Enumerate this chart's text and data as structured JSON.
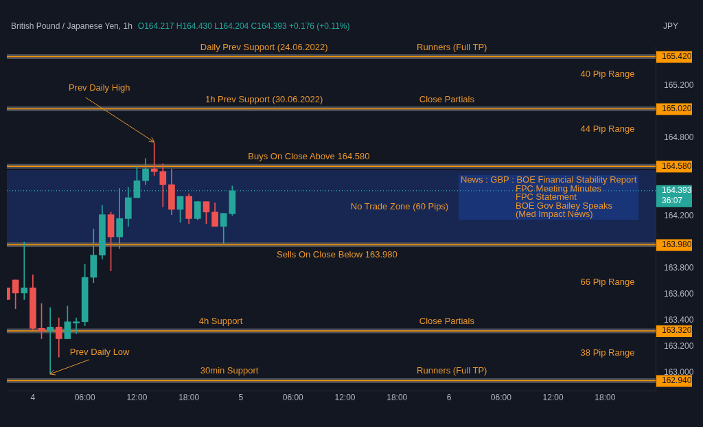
{
  "chart_data": {
    "type": "candlestick",
    "title": "British Pound / Japanese Yen, 1h",
    "subtitle": "O164.217  H164.430  L164.204  C164.393  +0.176 (+0.11%)",
    "ylabel": "JPY",
    "x": [
      "2022-07-03T21:00",
      "2022-07-03T22:00",
      "2022-07-03T23:00",
      "2022-07-04T00:00",
      "2022-07-04T01:00",
      "2022-07-04T02:00",
      "2022-07-04T03:00",
      "2022-07-04T04:00",
      "2022-07-04T05:00",
      "2022-07-04T06:00",
      "2022-07-04T07:00",
      "2022-07-04T08:00",
      "2022-07-04T09:00",
      "2022-07-04T10:00",
      "2022-07-04T11:00",
      "2022-07-04T12:00",
      "2022-07-04T13:00",
      "2022-07-04T14:00",
      "2022-07-04T15:00",
      "2022-07-04T16:00",
      "2022-07-04T17:00",
      "2022-07-04T18:00",
      "2022-07-04T19:00",
      "2022-07-04T20:00",
      "2022-07-04T21:00",
      "2022-07-04T22:00",
      "2022-07-04T23:00"
    ],
    "ohlc": [
      [
        163.65,
        163.65,
        163.56,
        163.56
      ],
      [
        163.71,
        163.71,
        163.49,
        163.61
      ],
      [
        163.61,
        164.0,
        163.56,
        163.65
      ],
      [
        163.65,
        163.75,
        163.33,
        163.34
      ],
      [
        163.34,
        163.53,
        163.26,
        163.32
      ],
      [
        163.32,
        163.5,
        162.99,
        163.35
      ],
      [
        163.35,
        163.42,
        163.12,
        163.26
      ],
      [
        163.26,
        163.51,
        163.26,
        163.39
      ],
      [
        163.38,
        163.42,
        163.3,
        163.39
      ],
      [
        163.39,
        163.83,
        163.36,
        163.73
      ],
      [
        163.73,
        164.1,
        163.69,
        163.9
      ],
      [
        163.9,
        164.28,
        163.87,
        164.21
      ],
      [
        164.21,
        164.23,
        163.78,
        164.04
      ],
      [
        164.04,
        164.41,
        163.95,
        164.18
      ],
      [
        164.18,
        164.42,
        164.12,
        164.34
      ],
      [
        164.34,
        164.58,
        164.34,
        164.47
      ],
      [
        164.47,
        164.64,
        164.44,
        164.56
      ],
      [
        164.56,
        164.76,
        164.51,
        164.54
      ],
      [
        164.54,
        164.6,
        164.27,
        164.44
      ],
      [
        164.44,
        164.56,
        164.21,
        164.25
      ],
      [
        164.25,
        164.35,
        164.15,
        164.35
      ],
      [
        164.35,
        164.37,
        164.14,
        164.18
      ],
      [
        164.18,
        164.31,
        164.17,
        164.31
      ],
      [
        164.31,
        164.31,
        164.14,
        164.23
      ],
      [
        164.23,
        164.3,
        164.12,
        164.12
      ],
      [
        164.12,
        164.22,
        163.98,
        164.22
      ],
      [
        164.217,
        164.43,
        164.204,
        164.393
      ]
    ],
    "colors": [
      "#ef5350",
      "#ef5350",
      "#26a69a",
      "#ef5350",
      "#ef5350",
      "#26a69a",
      "#ef5350",
      "#26a69a",
      "#26a69a",
      "#26a69a",
      "#26a69a",
      "#26a69a",
      "#ef5350",
      "#26a69a",
      "#26a69a",
      "#26a69a",
      "#26a69a",
      "#ef5350",
      "#ef5350",
      "#ef5350",
      "#26a69a",
      "#ef5350",
      "#26a69a",
      "#ef5350",
      "#ef5350",
      "#26a69a",
      "#26a69a"
    ],
    "xlim": [
      "2022-07-03T21:00",
      "2022-07-06T23:50"
    ],
    "xticks": [
      {
        "value": "2022-07-04",
        "label": "4"
      },
      {
        "value": "2022-07-04T06:00",
        "label": "06:00"
      },
      {
        "value": "2022-07-04T12:00",
        "label": "12:00"
      },
      {
        "value": "2022-07-04T18:00",
        "label": "18:00"
      },
      {
        "value": "2022-07-05",
        "label": "5"
      },
      {
        "value": "2022-07-05T06:00",
        "label": "06:00"
      },
      {
        "value": "2022-07-05T12:00",
        "label": "12:00"
      },
      {
        "value": "2022-07-05T18:00",
        "label": "18:00"
      },
      {
        "value": "2022-07-06",
        "label": "6"
      },
      {
        "value": "2022-07-06T06:00",
        "label": "06:00"
      },
      {
        "value": "2022-07-06T12:00",
        "label": "12:00"
      },
      {
        "value": "2022-07-06T18:00",
        "label": "18:00"
      }
    ],
    "ylim": [
      162.86,
      165.5
    ],
    "yticks": [
      {
        "value": 163.0,
        "label": "163.000"
      },
      {
        "value": 163.2,
        "label": "163.200"
      },
      {
        "value": 163.4,
        "label": "163.400"
      },
      {
        "value": 163.6,
        "label": "163.600"
      },
      {
        "value": 163.8,
        "label": "163.800"
      },
      {
        "value": 164.2,
        "label": "164.200"
      },
      {
        "value": 164.8,
        "label": "164.800"
      },
      {
        "value": 165.2,
        "label": "165.200"
      }
    ],
    "ref_lines": [
      {
        "axis": "y",
        "value": 165.42,
        "label": "165.420",
        "color": "#ff9800"
      },
      {
        "axis": "y",
        "value": 165.02,
        "label": "165.020",
        "color": "#ff9800"
      },
      {
        "axis": "y",
        "value": 164.58,
        "label": "164.580",
        "color": "#ff9800"
      },
      {
        "axis": "y",
        "value": 163.98,
        "label": "163.980",
        "color": "#ff9800"
      },
      {
        "axis": "y",
        "value": 163.32,
        "label": "163.320",
        "color": "#ff9800"
      },
      {
        "axis": "y",
        "value": 162.94,
        "label": "162.940",
        "color": "#ff9800"
      },
      {
        "axis": "y",
        "value": 164.393,
        "label": "164.393\n36:07",
        "color": "#26a69a",
        "line_style": "dotted"
      }
    ],
    "bands": [
      {
        "axis": "y",
        "from": 163.99,
        "to": 164.55,
        "label": "No Trade Zone (60 Pips)",
        "color": "#2962ff"
      }
    ],
    "annotations": [
      {
        "text": "Daily Prev Support (24.06.2022)",
        "x": "2022-07-05T02:40",
        "y": 165.42
      },
      {
        "text": "Runners (Full TP)",
        "x": "2022-07-06T00:20",
        "y": 165.42
      },
      {
        "text": "1h Prev Support (30.06.2022)",
        "x": "2022-07-05T02:40",
        "y": 165.02
      },
      {
        "text": "Close Partials",
        "x": "2022-07-05T23:45",
        "y": 165.02
      },
      {
        "text": "Buys On Close Above 164.580",
        "x": "2022-07-05T07:50",
        "y": 164.58
      },
      {
        "text": "Sells On Close Below 163.980",
        "x": "2022-07-05T11:05",
        "y": 163.98
      },
      {
        "text": "4h Support",
        "x": "2022-07-04T21:40",
        "y": 163.32
      },
      {
        "text": "Close Partials",
        "x": "2022-07-05T23:45",
        "y": 163.32
      },
      {
        "text": "30min Support",
        "x": "2022-07-04T22:40",
        "y": 162.94
      },
      {
        "text": "Runners (Full TP)",
        "x": "2022-07-06T00:20",
        "y": 162.94
      },
      "40 Pip Range",
      "44 Pip Range",
      "66 Pip Range",
      "38 Pip Range",
      {
        "text": "Prev Daily High",
        "x": "2022-07-04T14:00",
        "y": 164.76
      },
      {
        "text": "Prev Daily Low",
        "x": "2022-07-04T02:00",
        "y": 162.99
      },
      "News : GBP : BOE Financial Stability Report\nFPC Meeting Minutes\nFPC Statement\nBOE Gov Bailey Speaks\n(Med Impact News)"
    ]
  }
}
